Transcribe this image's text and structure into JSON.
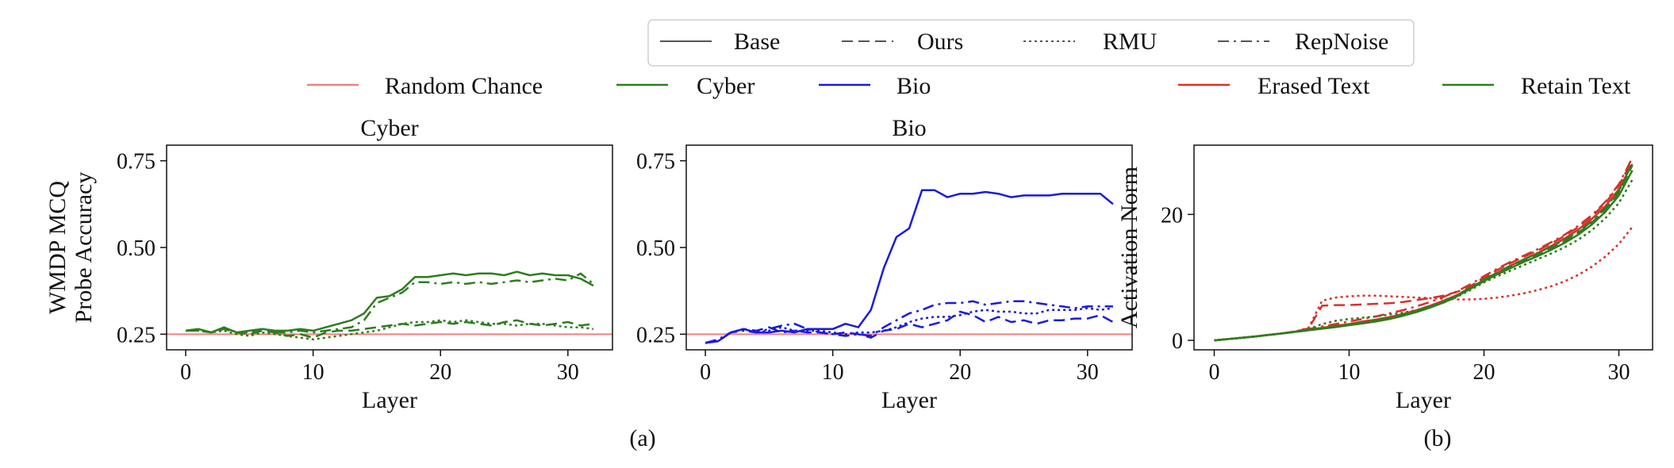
{
  "legend_styles": {
    "entries": [
      {
        "label": "Base",
        "dash": "solid"
      },
      {
        "label": "Ours",
        "dash": "dashed"
      },
      {
        "label": "RMU",
        "dash": "dotted"
      },
      {
        "label": "RepNoise",
        "dash": "dashdot"
      }
    ]
  },
  "legend_a": {
    "entries": [
      {
        "label": "Random Chance",
        "color": "#f08080"
      },
      {
        "label": "Cyber",
        "color": "#2e7d1f"
      },
      {
        "label": "Bio",
        "color": "#1a1adf"
      }
    ]
  },
  "legend_b": {
    "entries": [
      {
        "label": "Erased Text",
        "color": "#d9302a"
      },
      {
        "label": "Retain Text",
        "color": "#2e7d1f"
      }
    ]
  },
  "captions": {
    "a": "(a)",
    "b": "(b)"
  },
  "chart_data": [
    {
      "type": "line",
      "title": "Cyber",
      "xlabel": "Layer",
      "ylabel": [
        "WMDP MCQ",
        "Probe Accuracy"
      ],
      "xlim": [
        -1.5,
        33.5
      ],
      "ylim": [
        0.205,
        0.795
      ],
      "xticks": [
        0,
        10,
        20,
        30
      ],
      "yticks": [
        0.25,
        0.5,
        0.75
      ],
      "ytick_labels": [
        "0.25",
        "0.50",
        "0.75"
      ],
      "hline": {
        "y": 0.25,
        "label": "Random Chance",
        "color": "#f08080"
      },
      "x": [
        0,
        1,
        2,
        3,
        4,
        5,
        6,
        7,
        8,
        9,
        10,
        11,
        12,
        13,
        14,
        15,
        16,
        17,
        18,
        19,
        20,
        21,
        22,
        23,
        24,
        25,
        26,
        27,
        28,
        29,
        30,
        31,
        32
      ],
      "series": [
        {
          "method": "Base",
          "domain": "Cyber",
          "color": "#2e7d1f",
          "dash": "solid",
          "values": [
            0.26,
            0.265,
            0.255,
            0.27,
            0.255,
            0.26,
            0.265,
            0.26,
            0.26,
            0.265,
            0.26,
            0.27,
            0.28,
            0.29,
            0.31,
            0.355,
            0.36,
            0.38,
            0.415,
            0.415,
            0.42,
            0.425,
            0.42,
            0.425,
            0.425,
            0.42,
            0.43,
            0.42,
            0.425,
            0.42,
            0.42,
            0.41,
            0.39
          ]
        },
        {
          "method": "Ours",
          "domain": "Cyber",
          "color": "#2e7d1f",
          "dash": "dashed",
          "values": [
            0.26,
            0.26,
            0.255,
            0.265,
            0.255,
            0.25,
            0.26,
            0.255,
            0.245,
            0.25,
            0.24,
            0.255,
            0.26,
            0.26,
            0.265,
            0.27,
            0.275,
            0.28,
            0.275,
            0.28,
            0.285,
            0.28,
            0.285,
            0.28,
            0.275,
            0.285,
            0.29,
            0.28,
            0.275,
            0.28,
            0.285,
            0.275,
            0.28
          ]
        },
        {
          "method": "RMU",
          "domain": "Cyber",
          "color": "#2e7d1f",
          "dash": "dotted",
          "values": [
            0.26,
            0.26,
            0.255,
            0.26,
            0.25,
            0.245,
            0.255,
            0.25,
            0.245,
            0.24,
            0.235,
            0.24,
            0.245,
            0.25,
            0.255,
            0.26,
            0.27,
            0.28,
            0.285,
            0.285,
            0.29,
            0.285,
            0.29,
            0.285,
            0.28,
            0.28,
            0.275,
            0.28,
            0.28,
            0.275,
            0.27,
            0.27,
            0.265
          ]
        },
        {
          "method": "RepNoise",
          "domain": "Cyber",
          "color": "#2e7d1f",
          "dash": "dashdot",
          "values": [
            0.26,
            0.265,
            0.255,
            0.27,
            0.255,
            0.255,
            0.265,
            0.255,
            0.255,
            0.26,
            0.255,
            0.26,
            0.265,
            0.27,
            0.29,
            0.34,
            0.355,
            0.37,
            0.4,
            0.4,
            0.395,
            0.4,
            0.395,
            0.4,
            0.395,
            0.4,
            0.405,
            0.4,
            0.405,
            0.41,
            0.405,
            0.425,
            0.395
          ]
        }
      ]
    },
    {
      "type": "line",
      "title": "Bio",
      "xlabel": "Layer",
      "xlim": [
        -1.5,
        33.5
      ],
      "ylim": [
        0.205,
        0.795
      ],
      "xticks": [
        0,
        10,
        20,
        30
      ],
      "yticks": [
        0.25,
        0.5,
        0.75
      ],
      "ytick_labels": [
        "0.25",
        "0.50",
        "0.75"
      ],
      "hline": {
        "y": 0.25,
        "label": "Random Chance",
        "color": "#f08080"
      },
      "x": [
        0,
        1,
        2,
        3,
        4,
        5,
        6,
        7,
        8,
        9,
        10,
        11,
        12,
        13,
        14,
        15,
        16,
        17,
        18,
        19,
        20,
        21,
        22,
        23,
        24,
        25,
        26,
        27,
        28,
        29,
        30,
        31,
        32
      ],
      "series": [
        {
          "method": "Base",
          "domain": "Bio",
          "color": "#1a1adf",
          "dash": "solid",
          "values": [
            0.225,
            0.23,
            0.255,
            0.265,
            0.255,
            0.255,
            0.26,
            0.255,
            0.265,
            0.265,
            0.265,
            0.28,
            0.27,
            0.32,
            0.44,
            0.53,
            0.555,
            0.665,
            0.665,
            0.645,
            0.655,
            0.655,
            0.66,
            0.655,
            0.645,
            0.65,
            0.65,
            0.65,
            0.655,
            0.655,
            0.655,
            0.655,
            0.625
          ]
        },
        {
          "method": "Ours",
          "domain": "Bio",
          "color": "#1a1adf",
          "dash": "dashed",
          "values": [
            0.225,
            0.23,
            0.255,
            0.265,
            0.26,
            0.27,
            0.255,
            0.26,
            0.255,
            0.255,
            0.25,
            0.255,
            0.25,
            0.24,
            0.26,
            0.265,
            0.28,
            0.27,
            0.28,
            0.29,
            0.315,
            0.305,
            0.285,
            0.3,
            0.285,
            0.29,
            0.28,
            0.29,
            0.29,
            0.295,
            0.295,
            0.305,
            0.285
          ]
        },
        {
          "method": "RMU",
          "domain": "Bio",
          "color": "#1a1adf",
          "dash": "dotted",
          "values": [
            0.225,
            0.23,
            0.255,
            0.265,
            0.255,
            0.26,
            0.27,
            0.26,
            0.26,
            0.26,
            0.255,
            0.25,
            0.255,
            0.255,
            0.26,
            0.27,
            0.285,
            0.295,
            0.3,
            0.3,
            0.305,
            0.315,
            0.32,
            0.315,
            0.315,
            0.31,
            0.31,
            0.32,
            0.32,
            0.32,
            0.325,
            0.32,
            0.325
          ]
        },
        {
          "method": "RepNoise",
          "domain": "Bio",
          "color": "#1a1adf",
          "dash": "dashdot",
          "values": [
            0.225,
            0.235,
            0.255,
            0.26,
            0.255,
            0.265,
            0.275,
            0.28,
            0.265,
            0.255,
            0.25,
            0.245,
            0.25,
            0.245,
            0.27,
            0.29,
            0.31,
            0.32,
            0.335,
            0.34,
            0.34,
            0.345,
            0.335,
            0.34,
            0.345,
            0.345,
            0.34,
            0.335,
            0.33,
            0.325,
            0.33,
            0.33,
            0.33
          ]
        }
      ]
    },
    {
      "type": "line",
      "title": "",
      "xlabel": "Layer",
      "ylabel": [
        "Activation Norm"
      ],
      "xlim": [
        -1.5,
        32.5
      ],
      "ylim": [
        -1.5,
        31
      ],
      "xticks": [
        0,
        10,
        20,
        30
      ],
      "yticks": [
        0,
        20
      ],
      "ytick_labels": [
        "0",
        "20"
      ],
      "x": [
        0,
        1,
        2,
        3,
        4,
        5,
        6,
        7,
        8,
        9,
        10,
        11,
        12,
        13,
        14,
        15,
        16,
        17,
        18,
        19,
        20,
        21,
        22,
        23,
        24,
        25,
        26,
        27,
        28,
        29,
        30,
        31
      ],
      "series": [
        {
          "method": "Base",
          "domain": "Erased Text",
          "color": "#d9302a",
          "dash": "solid",
          "values": [
            0,
            0.2,
            0.4,
            0.6,
            0.85,
            1.1,
            1.4,
            1.7,
            2.0,
            2.3,
            2.6,
            3.0,
            3.3,
            3.7,
            4.2,
            4.8,
            5.5,
            6.3,
            7.2,
            8.3,
            9.6,
            10.8,
            11.9,
            12.9,
            13.9,
            15.0,
            16.2,
            17.6,
            19.3,
            21.3,
            24.0,
            28.0
          ]
        },
        {
          "method": "Ours",
          "domain": "Erased Text",
          "color": "#d9302a",
          "dash": "dashed",
          "values": [
            0,
            0.2,
            0.4,
            0.6,
            0.85,
            1.1,
            1.4,
            1.9,
            5.5,
            5.6,
            5.6,
            5.7,
            5.8,
            5.9,
            6.1,
            6.4,
            6.7,
            7.1,
            7.7,
            8.6,
            10.0,
            11.2,
            12.3,
            13.3,
            14.3,
            15.4,
            16.6,
            18.0,
            19.7,
            21.8,
            24.6,
            28.6
          ]
        },
        {
          "method": "RMU",
          "domain": "Erased Text",
          "color": "#d9302a",
          "dash": "dotted",
          "values": [
            0,
            0.2,
            0.4,
            0.6,
            0.85,
            1.1,
            1.4,
            2.0,
            6.3,
            6.8,
            7.0,
            7.1,
            7.1,
            7.0,
            6.9,
            6.8,
            6.7,
            6.6,
            6.5,
            6.5,
            6.6,
            6.8,
            7.1,
            7.5,
            8.0,
            8.6,
            9.4,
            10.4,
            11.7,
            13.3,
            15.3,
            18.0
          ]
        },
        {
          "method": "RepNoise",
          "domain": "Erased Text",
          "color": "#d9302a",
          "dash": "dashdot",
          "values": [
            0,
            0.2,
            0.4,
            0.6,
            0.85,
            1.1,
            1.4,
            1.8,
            2.2,
            2.6,
            3.0,
            3.4,
            3.8,
            4.3,
            4.8,
            5.4,
            6.1,
            6.9,
            7.8,
            8.9,
            10.2,
            11.4,
            12.5,
            13.5,
            14.5,
            15.6,
            16.8,
            18.2,
            19.9,
            22.0,
            24.8,
            29.0
          ]
        },
        {
          "method": "Base",
          "domain": "Retain Text",
          "color": "#2e7d1f",
          "dash": "solid",
          "values": [
            0,
            0.2,
            0.4,
            0.6,
            0.85,
            1.1,
            1.35,
            1.6,
            1.85,
            2.1,
            2.4,
            2.7,
            3.0,
            3.4,
            3.9,
            4.5,
            5.2,
            6.0,
            7.0,
            8.2,
            9.4,
            10.5,
            11.5,
            12.5,
            13.4,
            14.4,
            15.5,
            16.8,
            18.4,
            20.4,
            23.0,
            27.0
          ]
        },
        {
          "method": "Ours",
          "domain": "Retain Text",
          "color": "#2e7d1f",
          "dash": "dashed",
          "values": [
            0,
            0.2,
            0.4,
            0.6,
            0.85,
            1.1,
            1.35,
            1.6,
            1.9,
            2.2,
            2.5,
            2.8,
            3.1,
            3.5,
            4.0,
            4.6,
            5.3,
            6.1,
            7.1,
            8.3,
            9.6,
            10.7,
            11.8,
            12.8,
            13.7,
            14.7,
            15.8,
            17.1,
            18.7,
            20.8,
            23.5,
            27.8
          ]
        },
        {
          "method": "RMU",
          "domain": "Retain Text",
          "color": "#2e7d1f",
          "dash": "dotted",
          "values": [
            0,
            0.2,
            0.4,
            0.6,
            0.85,
            1.1,
            1.35,
            1.8,
            2.6,
            3.1,
            3.4,
            3.6,
            3.8,
            4.1,
            4.4,
            4.8,
            5.3,
            6.0,
            6.9,
            8.0,
            9.2,
            10.2,
            11.1,
            12.0,
            12.9,
            13.8,
            14.8,
            16.0,
            17.5,
            19.4,
            21.8,
            25.5
          ]
        },
        {
          "method": "RepNoise",
          "domain": "Retain Text",
          "color": "#2e7d1f",
          "dash": "dashdot",
          "values": [
            0,
            0.2,
            0.4,
            0.6,
            0.85,
            1.1,
            1.35,
            1.65,
            1.95,
            2.25,
            2.55,
            2.85,
            3.2,
            3.6,
            4.1,
            4.7,
            5.4,
            6.2,
            7.2,
            8.4,
            9.7,
            10.8,
            11.9,
            12.9,
            13.9,
            14.9,
            16.0,
            17.3,
            18.9,
            21.0,
            23.8,
            28.2
          ]
        }
      ]
    }
  ]
}
